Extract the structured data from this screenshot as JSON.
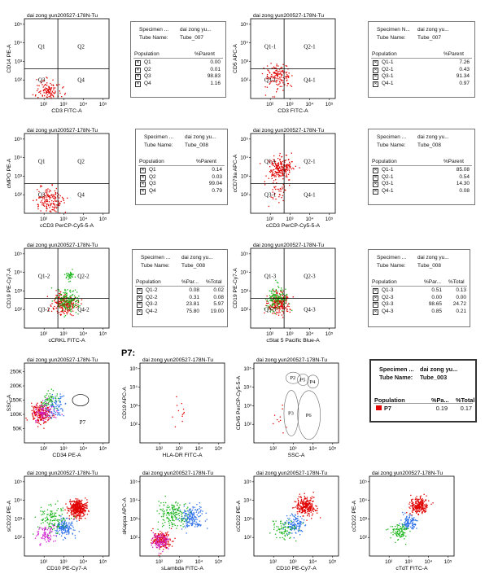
{
  "plot_title": "dai zong yun200527-178N-Tu",
  "p7_label": "P7:",
  "chart_data": [
    {
      "type": "scatter",
      "id": "r1a",
      "xlabel": "CD3 FITC-A",
      "ylabel": "CD14 PE-A",
      "scale": "log",
      "x_ticks": [
        "10²",
        "10³",
        "10⁴",
        "10⁵"
      ],
      "y_ticks": [
        "10²",
        "10³",
        "10⁴",
        "10⁵"
      ],
      "quadrant_labels": [
        "Q1",
        "Q2",
        "Q3",
        "Q4"
      ],
      "series": [
        {
          "color": "#e00000",
          "points": [
            {
              "x": 2.2,
              "y": 1.5,
              "n": 120,
              "spread": 0.6
            }
          ]
        }
      ]
    },
    {
      "type": "scatter",
      "id": "r1b",
      "xlabel": "CD3 FITC-A",
      "ylabel": "CD5 APC-A",
      "scale": "log",
      "x_ticks": [
        "10²",
        "10³",
        "10⁴",
        "10⁵"
      ],
      "y_ticks": [
        "10²",
        "10³",
        "10⁴",
        "10⁵"
      ],
      "quadrant_labels": [
        "Q1-1",
        "Q2-1",
        "Q3-1",
        "Q4-1"
      ],
      "series": [
        {
          "color": "#e00000",
          "points": [
            {
              "x": 2.4,
              "y": 2.2,
              "n": 140,
              "spread": 0.7
            }
          ]
        }
      ]
    },
    {
      "type": "scatter",
      "id": "r2a",
      "xlabel": "cCD3 PerCP-Cy5-5-A",
      "ylabel": "cMPO PE-A",
      "scale": "log",
      "x_ticks": [
        "10²",
        "10³",
        "10⁴",
        "10⁵"
      ],
      "y_ticks": [
        "10²",
        "10³",
        "10⁴",
        "10⁵"
      ],
      "quadrant_labels": [
        "Q1",
        "Q2",
        "Q3",
        "Q4"
      ],
      "series": [
        {
          "color": "#e00000",
          "points": [
            {
              "x": 2.2,
              "y": 1.7,
              "n": 160,
              "spread": 0.7
            }
          ]
        }
      ]
    },
    {
      "type": "scatter",
      "id": "r2b",
      "xlabel": "cCD3 PerCP-Cy5-5-A",
      "ylabel": "cCD79a APC-A",
      "scale": "log",
      "x_ticks": [
        "10²",
        "10³",
        "10⁴",
        "10⁵"
      ],
      "y_ticks": [
        "10²",
        "10³",
        "10⁴",
        "10⁵"
      ],
      "quadrant_labels": [
        "Q1-1",
        "Q2-1",
        "Q3-1",
        "Q4-1"
      ],
      "series": [
        {
          "color": "#e00000",
          "points": [
            {
              "x": 2.5,
              "y": 3.5,
              "n": 220,
              "spread": 0.6
            },
            {
              "x": 2.3,
              "y": 2.2,
              "n": 40,
              "spread": 0.7
            }
          ]
        }
      ]
    },
    {
      "type": "scatter",
      "id": "r3a",
      "xlabel": "cCRKL FITC-A",
      "ylabel": "CD19 PE-Cy7-A",
      "scale": "log",
      "x_ticks": [
        "10²",
        "10³",
        "10⁴",
        "10⁵"
      ],
      "y_ticks": [
        "10²",
        "10³",
        "10⁴",
        "10⁵"
      ],
      "quadrant_labels": [
        "Q1-2",
        "Q2-2",
        "Q3-2",
        "Q4-2"
      ],
      "series": [
        {
          "color": "#e00000",
          "points": [
            {
              "x": 3.0,
              "y": 2.3,
              "n": 220,
              "spread": 0.6
            }
          ]
        },
        {
          "color": "#1ab51a",
          "points": [
            {
              "x": 3.2,
              "y": 2.5,
              "n": 160,
              "spread": 0.6
            },
            {
              "x": 3.3,
              "y": 3.8,
              "n": 40,
              "spread": 0.25
            }
          ]
        }
      ]
    },
    {
      "type": "scatter",
      "id": "r3b",
      "xlabel": "cStat 5 Pacific Blue-A",
      "ylabel": "CD19 PE-Cy7-A",
      "scale": "log",
      "x_ticks": [
        "10²",
        "10³",
        "10⁴",
        "10⁵"
      ],
      "y_ticks": [
        "10²",
        "10³",
        "10⁴",
        "10⁵"
      ],
      "quadrant_labels": [
        "Q1-3",
        "Q2-3",
        "Q3-3",
        "Q4-3"
      ],
      "series": [
        {
          "color": "#e00000",
          "points": [
            {
              "x": 2.4,
              "y": 2.4,
              "n": 220,
              "spread": 0.55
            }
          ]
        },
        {
          "color": "#1ab51a",
          "points": [
            {
              "x": 2.3,
              "y": 2.6,
              "n": 140,
              "spread": 0.6
            }
          ]
        }
      ]
    },
    {
      "type": "scatter",
      "id": "r4a",
      "xlabel": "CD34 PE-A",
      "ylabel": "SSC-A",
      "scale": "log",
      "x_ticks": [
        "10²",
        "10³",
        "10⁴",
        "10⁵"
      ],
      "y_ticks": [
        "50K",
        "100K",
        "150K",
        "200K",
        "250K"
      ],
      "gate_label": "P7",
      "series": [
        {
          "color": "#e00000",
          "points": [
            {
              "x": 1.8,
              "y": 2.6,
              "n": 200,
              "spread": 0.5
            }
          ]
        },
        {
          "color": "#d020d0",
          "points": [
            {
              "x": 2.0,
              "y": 2.7,
              "n": 100,
              "spread": 0.5
            }
          ]
        },
        {
          "color": "#2a6fe8",
          "points": [
            {
              "x": 2.6,
              "y": 3.0,
              "n": 80,
              "spread": 0.5
            }
          ]
        },
        {
          "color": "#1ab51a",
          "points": [
            {
              "x": 2.2,
              "y": 3.3,
              "n": 60,
              "spread": 0.5
            }
          ]
        }
      ]
    },
    {
      "type": "scatter",
      "id": "r4b",
      "xlabel": "HLA-DR FITC-A",
      "ylabel": "CD19 APC-A",
      "scale": "log",
      "x_ticks": [
        "10²",
        "10³",
        "10⁴",
        "10⁵"
      ],
      "y_ticks": [
        "10²",
        "10³",
        "10⁴",
        "10⁵"
      ],
      "series": [
        {
          "color": "#e00000",
          "points": [
            {
              "x": 3.0,
              "y": 2.6,
              "n": 12,
              "spread": 0.9
            }
          ]
        }
      ]
    },
    {
      "type": "scatter",
      "id": "r4c",
      "xlabel": "SSC-A",
      "ylabel": "CD45 PerCP-Cy5-5-A",
      "scale": "log",
      "x_ticks": [
        "10²",
        "10³",
        "10⁴",
        "10⁵"
      ],
      "y_ticks": [
        "10²",
        "10³",
        "10⁴",
        "10⁵"
      ],
      "gate_labels": [
        "P2",
        "P5",
        "P4",
        "P3",
        "P6"
      ],
      "series": [
        {
          "color": "#e00000",
          "points": [
            {
              "x": 2.3,
              "y": 2.2,
              "n": 10,
              "spread": 0.6
            }
          ]
        }
      ]
    },
    {
      "type": "scatter",
      "id": "r5a",
      "xlabel": "CD10 PE-Cy7-A",
      "ylabel": "sCD22 PE-A",
      "scale": "log",
      "x_ticks": [
        "10²",
        "10³",
        "10⁴",
        "10⁵"
      ],
      "y_ticks": [
        "10²",
        "10³",
        "10⁴",
        "10⁵"
      ],
      "series": [
        {
          "color": "#e00000",
          "points": [
            {
              "x": 3.7,
              "y": 3.6,
              "n": 400,
              "spread": 0.45
            }
          ]
        },
        {
          "color": "#2a6fe8",
          "points": [
            {
              "x": 3.0,
              "y": 2.6,
              "n": 160,
              "spread": 0.5
            }
          ]
        },
        {
          "color": "#1ab51a",
          "points": [
            {
              "x": 2.4,
              "y": 3.0,
              "n": 120,
              "spread": 0.7
            }
          ]
        },
        {
          "color": "#d020d0",
          "points": [
            {
              "x": 2.1,
              "y": 2.2,
              "n": 80,
              "spread": 0.5
            }
          ]
        }
      ]
    },
    {
      "type": "scatter",
      "id": "r5b",
      "xlabel": "sLambda FITC-A",
      "ylabel": "sKappa APC-A",
      "scale": "log",
      "x_ticks": [
        "10²",
        "10³",
        "10⁴",
        "10⁵"
      ],
      "y_ticks": [
        "10²",
        "10³",
        "10⁴",
        "10⁵"
      ],
      "series": [
        {
          "color": "#2a6fe8",
          "points": [
            {
              "x": 3.6,
              "y": 3.1,
              "n": 180,
              "spread": 0.6
            }
          ]
        },
        {
          "color": "#1ab51a",
          "points": [
            {
              "x": 2.6,
              "y": 3.3,
              "n": 160,
              "spread": 0.7
            }
          ]
        },
        {
          "color": "#e00000",
          "points": [
            {
              "x": 2.1,
              "y": 1.9,
              "n": 180,
              "spread": 0.45
            }
          ]
        },
        {
          "color": "#d020d0",
          "points": [
            {
              "x": 2.0,
              "y": 1.8,
              "n": 90,
              "spread": 0.45
            }
          ]
        }
      ]
    },
    {
      "type": "scatter",
      "id": "r5c",
      "xlabel": "CD10 PE-Cy7-A",
      "ylabel": "cCD22 PE-A",
      "scale": "log",
      "x_ticks": [
        "10²",
        "10³",
        "10⁴",
        "10⁵"
      ],
      "y_ticks": [
        "10²",
        "10³",
        "10⁴",
        "10⁵"
      ],
      "series": [
        {
          "color": "#e00000",
          "points": [
            {
              "x": 3.6,
              "y": 3.7,
              "n": 260,
              "spread": 0.5
            }
          ]
        },
        {
          "color": "#2a6fe8",
          "points": [
            {
              "x": 3.0,
              "y": 2.7,
              "n": 130,
              "spread": 0.5
            }
          ]
        },
        {
          "color": "#1ab51a",
          "points": [
            {
              "x": 2.5,
              "y": 2.5,
              "n": 80,
              "spread": 0.6
            }
          ]
        }
      ]
    },
    {
      "type": "scatter",
      "id": "r5d",
      "xlabel": "cTdT FITC-A",
      "ylabel": "cCD22 PE-A",
      "scale": "log",
      "x_ticks": [
        "10²",
        "10³",
        "10⁴",
        "10⁵"
      ],
      "y_ticks": [
        "10²",
        "10³",
        "10⁴",
        "10⁵"
      ],
      "series": [
        {
          "color": "#e00000",
          "points": [
            {
              "x": 3.5,
              "y": 3.7,
              "n": 240,
              "spread": 0.45
            }
          ]
        },
        {
          "color": "#2a6fe8",
          "points": [
            {
              "x": 3.0,
              "y": 2.8,
              "n": 110,
              "spread": 0.4
            }
          ]
        },
        {
          "color": "#1ab51a",
          "points": [
            {
              "x": 2.5,
              "y": 2.3,
              "n": 100,
              "spread": 0.5
            }
          ]
        }
      ]
    }
  ],
  "stats_tables": [
    {
      "id": "t1",
      "specimen_label": "Specimen ...",
      "specimen_value": "dai zong yu...",
      "tube_label": "Tube Name:",
      "tube_value": "Tube_007",
      "columns": [
        "Population",
        "%Parent"
      ],
      "rows": [
        [
          "Q1",
          "0.00"
        ],
        [
          "Q2",
          "0.01"
        ],
        [
          "Q3",
          "98.83"
        ],
        [
          "Q4",
          "1.16"
        ]
      ]
    },
    {
      "id": "t2",
      "specimen_label": "Specimen N...",
      "specimen_value": "dai zong yu...",
      "tube_label": "Tube Name:",
      "tube_value": "Tube_007",
      "columns": [
        "Population",
        "%Parent"
      ],
      "rows": [
        [
          "Q1-1",
          "7.26"
        ],
        [
          "Q2-1",
          "0.43"
        ],
        [
          "Q3-1",
          "91.34"
        ],
        [
          "Q4-1",
          "0.97"
        ]
      ]
    },
    {
      "id": "t3",
      "specimen_label": "Specimen ...",
      "specimen_value": "dai zong yu...",
      "tube_label": "Tube Name:",
      "tube_value": "Tube_008",
      "columns": [
        "Population",
        "%Parent"
      ],
      "rows": [
        [
          "Q1",
          "0.14"
        ],
        [
          "Q2",
          "0.03"
        ],
        [
          "Q3",
          "99.04"
        ],
        [
          "Q4",
          "0.79"
        ]
      ]
    },
    {
      "id": "t4",
      "specimen_label": "Specimen ...",
      "specimen_value": "dai zong yu...",
      "tube_label": "Tube Name:",
      "tube_value": "Tube_008",
      "columns": [
        "Population",
        "%Parent"
      ],
      "rows": [
        [
          "Q1-1",
          "85.08"
        ],
        [
          "Q2-1",
          "0.54"
        ],
        [
          "Q3-1",
          "14.30"
        ],
        [
          "Q4-1",
          "0.08"
        ]
      ]
    },
    {
      "id": "t5",
      "specimen_label": "Specimen ...",
      "specimen_value": "dai zong yu...",
      "tube_label": "Tube Name:",
      "tube_value": "Tube_008",
      "columns": [
        "Population",
        "%Par...",
        "%Total"
      ],
      "rows": [
        [
          "Q1-2",
          "0.08",
          "0.02"
        ],
        [
          "Q2-2",
          "0.31",
          "0.08"
        ],
        [
          "Q3-2",
          "23.81",
          "5.97"
        ],
        [
          "Q4-2",
          "75.80",
          "19.00"
        ]
      ]
    },
    {
      "id": "t6",
      "specimen_label": "Specimen ...",
      "specimen_value": "dai zong yu...",
      "tube_label": "Tube Name:",
      "tube_value": "Tube_008",
      "columns": [
        "Population",
        "%Par...",
        "%Total"
      ],
      "rows": [
        [
          "Q1-3",
          "0.51",
          "0.13"
        ],
        [
          "Q2-3",
          "0.00",
          "0.00"
        ],
        [
          "Q3-3",
          "98.65",
          "24.72"
        ],
        [
          "Q4-3",
          "0.85",
          "0.21"
        ]
      ]
    },
    {
      "id": "t7",
      "specimen_label": "Specimen ...",
      "specimen_value": "dai zong yu...",
      "tube_label": "Tube Name:",
      "tube_value": "Tube_003",
      "columns": [
        "Population",
        "%Pa...",
        "%Total"
      ],
      "rows": [
        [
          "P7",
          "0.19",
          "0.17"
        ]
      ],
      "row_color": "#e00000"
    }
  ]
}
